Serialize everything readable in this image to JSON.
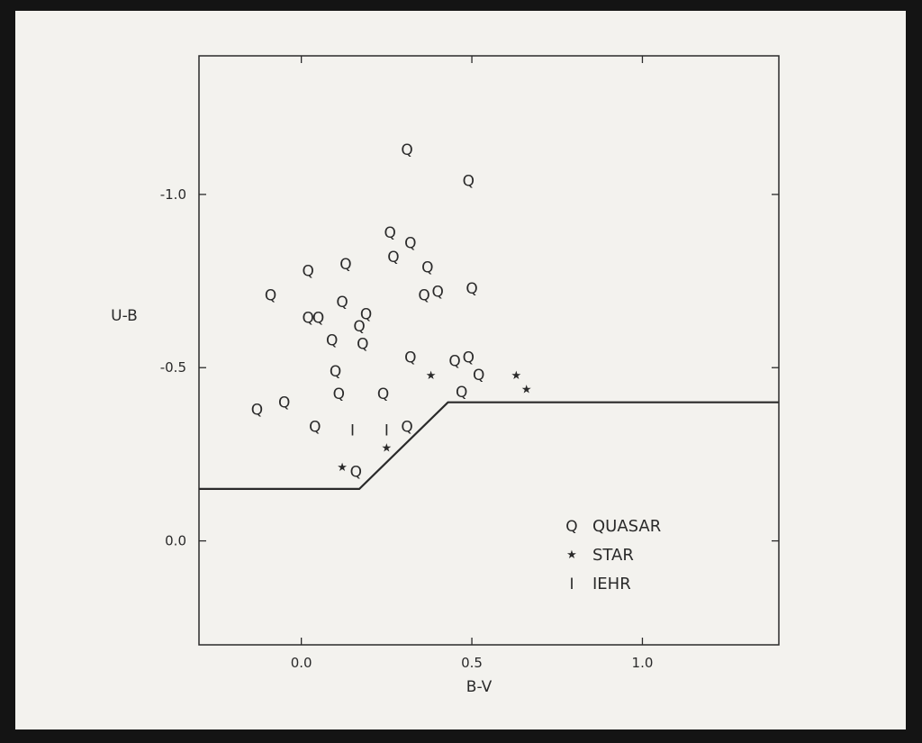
{
  "chart_data": {
    "type": "scatter",
    "title": "",
    "xlabel": "B-V",
    "ylabel": "U-B",
    "xlim": [
      -0.3,
      1.4
    ],
    "ylim": [
      0.3,
      -1.4
    ],
    "y_inverted": true,
    "x_ticks": [
      0.0,
      0.5,
      1.0
    ],
    "x_tick_labels": [
      "0.0",
      "0.5",
      "1.0"
    ],
    "y_ticks": [
      -1.0,
      -0.5,
      0.0
    ],
    "y_tick_labels": [
      "-1.0",
      "-0.5",
      "0.0"
    ],
    "grid": false,
    "legend_position": "bottom-right",
    "colors": {
      "ink": "#2a2a2a",
      "paper": "#f3f2ee"
    },
    "series": [
      {
        "name": "QUASAR",
        "marker": "Q",
        "points": [
          [
            0.31,
            -1.13
          ],
          [
            0.49,
            -1.04
          ],
          [
            0.26,
            -0.89
          ],
          [
            0.32,
            -0.86
          ],
          [
            0.27,
            -0.82
          ],
          [
            0.02,
            -0.78
          ],
          [
            0.13,
            -0.8
          ],
          [
            0.37,
            -0.79
          ],
          [
            -0.09,
            -0.71
          ],
          [
            0.12,
            -0.69
          ],
          [
            0.36,
            -0.71
          ],
          [
            0.4,
            -0.72
          ],
          [
            0.5,
            -0.73
          ],
          [
            0.02,
            -0.645
          ],
          [
            0.05,
            -0.645
          ],
          [
            0.19,
            -0.655
          ],
          [
            0.17,
            -0.62
          ],
          [
            0.09,
            -0.58
          ],
          [
            0.18,
            -0.57
          ],
          [
            0.32,
            -0.53
          ],
          [
            0.45,
            -0.52
          ],
          [
            0.49,
            -0.53
          ],
          [
            0.52,
            -0.48
          ],
          [
            0.1,
            -0.49
          ],
          [
            0.11,
            -0.425
          ],
          [
            0.24,
            -0.425
          ],
          [
            0.47,
            -0.43
          ],
          [
            -0.13,
            -0.38
          ],
          [
            -0.05,
            -0.4
          ],
          [
            0.04,
            -0.33
          ],
          [
            0.31,
            -0.33
          ],
          [
            0.16,
            -0.2
          ]
        ]
      },
      {
        "name": "STAR",
        "marker": "★",
        "points": [
          [
            0.38,
            -0.48
          ],
          [
            0.63,
            -0.48
          ],
          [
            0.66,
            -0.44
          ],
          [
            0.25,
            -0.27
          ],
          [
            0.12,
            -0.215
          ]
        ]
      },
      {
        "name": "IEHR",
        "marker": "I",
        "points": [
          [
            0.15,
            -0.32
          ],
          [
            0.25,
            -0.32
          ]
        ]
      }
    ],
    "boundary_line": [
      [
        -0.3,
        -0.15
      ],
      [
        0.17,
        -0.15
      ],
      [
        0.43,
        -0.4
      ],
      [
        1.4,
        -0.4
      ]
    ]
  }
}
